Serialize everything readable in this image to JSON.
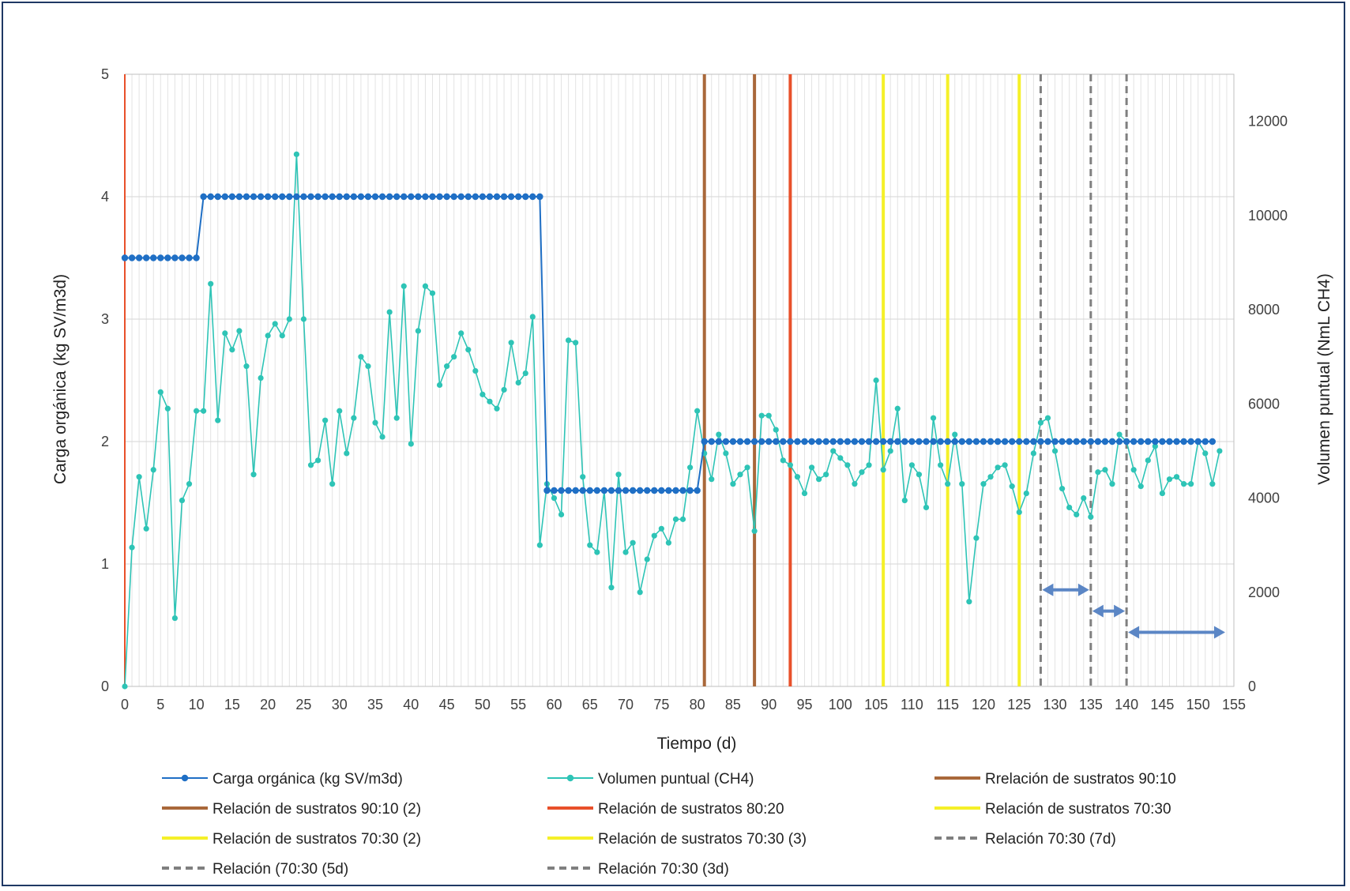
{
  "chart_data": {
    "type": "line",
    "title": "",
    "xlabel": "Tiempo (d)",
    "ylabel": "Carga orgánica  (kg SV/m3d)",
    "y2label": "Volumen  puntual  (NmL CH4)",
    "xlim": [
      0,
      155
    ],
    "ylim": [
      0,
      5
    ],
    "y2lim": [
      0,
      13000
    ],
    "x_ticks": [
      0,
      5,
      10,
      15,
      20,
      25,
      30,
      35,
      40,
      45,
      50,
      55,
      60,
      65,
      70,
      75,
      80,
      85,
      90,
      95,
      100,
      105,
      110,
      115,
      120,
      125,
      130,
      135,
      140,
      145,
      150,
      155
    ],
    "y_ticks": [
      0,
      1,
      2,
      3,
      4,
      5
    ],
    "y2_ticks": [
      0,
      2000,
      4000,
      6000,
      8000,
      10000,
      12000
    ],
    "grid": true,
    "legend_position": "bottom",
    "colors": {
      "carga": "#1f6fc5",
      "volumen": "#2ec4b6",
      "brown": "#a9683a",
      "red": "#e8502a",
      "yellow": "#f5f028",
      "gray": "#7f7f7f",
      "arrow": "#5b86c5"
    },
    "series": [
      {
        "name": "Carga orgánica (kg SV/m3d)",
        "axis": "left",
        "segments": [
          {
            "x_start": 0,
            "x_end": 10,
            "y": 3.5
          },
          {
            "x_start": 11,
            "x_end": 58,
            "y": 4.0
          },
          {
            "x_start": 59,
            "x_end": 80,
            "y": 1.6
          },
          {
            "x_start": 81,
            "x_end": 152,
            "y": 2.0
          }
        ]
      },
      {
        "name": "Volumen puntual (CH4)",
        "axis": "right",
        "x": [
          0,
          1,
          2,
          3,
          4,
          5,
          6,
          7,
          8,
          9,
          10,
          11,
          12,
          13,
          14,
          15,
          16,
          17,
          18,
          19,
          20,
          21,
          22,
          23,
          24,
          25,
          26,
          27,
          28,
          29,
          30,
          31,
          32,
          33,
          34,
          35,
          36,
          37,
          38,
          39,
          40,
          41,
          42,
          43,
          44,
          45,
          46,
          47,
          48,
          49,
          50,
          51,
          52,
          53,
          54,
          55,
          56,
          57,
          58,
          59,
          60,
          61,
          62,
          63,
          64,
          65,
          66,
          67,
          68,
          69,
          70,
          71,
          72,
          73,
          74,
          75,
          76,
          77,
          78,
          79,
          80,
          81,
          82,
          83,
          84,
          85,
          86,
          87,
          88,
          89,
          90,
          91,
          92,
          93,
          94,
          95,
          96,
          97,
          98,
          99,
          100,
          101,
          102,
          103,
          104,
          105,
          106,
          107,
          108,
          109,
          110,
          111,
          112,
          113,
          114,
          115,
          116,
          117,
          118,
          119,
          120,
          121,
          122,
          123,
          124,
          125,
          126,
          127,
          128,
          129,
          130,
          131,
          132,
          133,
          134,
          135,
          136,
          137,
          138,
          139,
          140,
          141,
          142,
          143,
          144,
          145,
          146,
          147,
          148,
          149,
          150,
          151,
          152,
          153
        ],
        "values": [
          0,
          2950,
          4450,
          3350,
          4600,
          6250,
          5900,
          1450,
          3950,
          4300,
          5850,
          5850,
          8550,
          5650,
          7500,
          7150,
          7550,
          6800,
          4500,
          6550,
          7450,
          7700,
          7450,
          7800,
          11300,
          7800,
          4700,
          4800,
          5650,
          4300,
          5850,
          4950,
          5700,
          7000,
          6800,
          5600,
          5300,
          7950,
          5700,
          8500,
          5150,
          7550,
          8500,
          8350,
          6400,
          6800,
          7000,
          7500,
          7150,
          6700,
          6200,
          6050,
          5900,
          6300,
          7300,
          6450,
          6650,
          7850,
          3000,
          4300,
          4000,
          3650,
          7350,
          7300,
          4450,
          3000,
          2850,
          4150,
          2100,
          4500,
          2850,
          3050,
          2000,
          2700,
          3200,
          3350,
          3050,
          3550,
          3550,
          4650,
          5850,
          4950,
          4400,
          5350,
          4950,
          4300,
          4500,
          4650,
          3300,
          5750,
          5750,
          5450,
          4800,
          4700,
          4450,
          4100,
          4650,
          4400,
          4500,
          5000,
          4850,
          4700,
          4300,
          4550,
          4700,
          6500,
          4600,
          5000,
          5900,
          3950,
          4700,
          4500,
          3800,
          5700,
          4700,
          4300,
          5350,
          4300,
          1800,
          3150,
          4300,
          4450,
          4650,
          4700,
          4250,
          3700,
          4100,
          4950,
          5600,
          5700,
          5000,
          4200,
          3800,
          3650,
          4000,
          3600,
          4550,
          4600,
          4300,
          5350,
          5200,
          4600,
          4250,
          4800,
          5100,
          4100,
          4400,
          4450,
          4300,
          4300,
          5200,
          4950,
          4300,
          5000
        ]
      }
    ],
    "vertical_lines": [
      {
        "x": 81,
        "color": "brown",
        "dash": false
      },
      {
        "x": 88,
        "color": "brown",
        "dash": false
      },
      {
        "x": 93,
        "color": "red",
        "dash": false
      },
      {
        "x": 106,
        "color": "yellow",
        "dash": false
      },
      {
        "x": 115,
        "color": "yellow",
        "dash": false
      },
      {
        "x": 125,
        "color": "yellow",
        "dash": false
      },
      {
        "x": 128,
        "color": "gray",
        "dash": true
      },
      {
        "x": 135,
        "color": "gray",
        "dash": true
      },
      {
        "x": 140,
        "color": "gray",
        "dash": true
      }
    ],
    "arrows": [
      {
        "x_start": 128,
        "x_end": 135,
        "y2": 2050
      },
      {
        "x_start": 135,
        "x_end": 140,
        "y2": 1600
      },
      {
        "x_start": 140,
        "x_end": 154,
        "y2": 1150
      }
    ],
    "legend": [
      {
        "label": "Carga orgánica (kg SV/m3d)",
        "style": "marker-line",
        "color": "carga"
      },
      {
        "label": "Volumen puntual (CH4)",
        "style": "marker-line",
        "color": "volumen"
      },
      {
        "label": "Rrelación de sustratos 90:10",
        "style": "line",
        "color": "brown"
      },
      {
        "label": "Relación de sustratos 90:10 (2)",
        "style": "line",
        "color": "brown"
      },
      {
        "label": "Relación de sustratos 80:20",
        "style": "line",
        "color": "red"
      },
      {
        "label": "Relación de sustratos 70:30",
        "style": "line",
        "color": "yellow"
      },
      {
        "label": "Relación de sustratos 70:30 (2)",
        "style": "line",
        "color": "yellow"
      },
      {
        "label": "Relación de sustratos 70:30 (3)",
        "style": "line",
        "color": "yellow"
      },
      {
        "label": "Relación 70:30 (7d)",
        "style": "dash",
        "color": "gray"
      },
      {
        "label": "Relación (70:30 (5d)",
        "style": "dash",
        "color": "gray"
      },
      {
        "label": "Relación 70:30 (3d)",
        "style": "dash",
        "color": "gray"
      }
    ]
  }
}
